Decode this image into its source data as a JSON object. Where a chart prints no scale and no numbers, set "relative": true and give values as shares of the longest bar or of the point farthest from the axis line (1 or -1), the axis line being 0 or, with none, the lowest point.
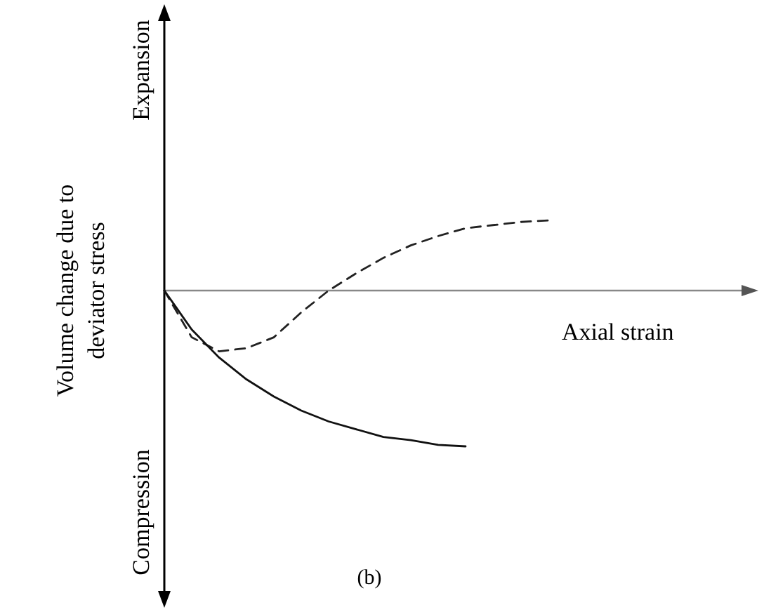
{
  "chart_data": {
    "type": "line",
    "relative": true,
    "xlabel": "Axial strain",
    "ylabel": "Volume change due to\ndeviator stress",
    "annotations": [
      "Expansion",
      "Compression",
      "(b)"
    ],
    "categories": [
      null,
      null,
      null,
      null,
      null,
      null,
      null,
      null,
      null,
      null,
      null,
      null,
      null,
      null,
      null
    ],
    "series": [
      {
        "color": "#222222",
        "line_style": "dashed",
        "values": [
          0,
          -0.3,
          -0.39,
          -0.37,
          -0.3,
          -0.14,
          0,
          0.11,
          0.21,
          0.29,
          0.35,
          0.4,
          0.42,
          0.44,
          0.45
        ]
      },
      {
        "color": "#111111",
        "line_style": "solid",
        "values": [
          0,
          -0.25,
          -0.43,
          -0.57,
          -0.68,
          -0.77,
          -0.84,
          -0.89,
          -0.94,
          -0.96,
          -0.99,
          -1,
          null,
          null,
          null
        ]
      }
    ]
  }
}
